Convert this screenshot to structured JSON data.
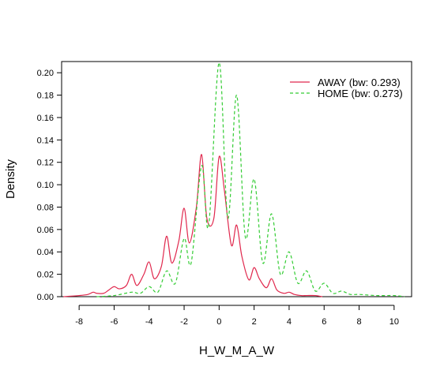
{
  "chart_data": {
    "type": "line",
    "title": "",
    "xlabel": "H_W_M_A_W",
    "ylabel": "Density",
    "xlim": [
      -9,
      11
    ],
    "ylim": [
      0,
      0.21
    ],
    "xticks": [
      -8,
      -6,
      -4,
      -2,
      0,
      2,
      4,
      6,
      8,
      10
    ],
    "yticks": [
      0.0,
      0.02,
      0.04,
      0.06,
      0.08,
      0.1,
      0.12,
      0.14,
      0.16,
      0.18,
      0.2
    ],
    "xtick_labels": [
      "-8",
      "-6",
      "-4",
      "-2",
      "0",
      "2",
      "4",
      "6",
      "8",
      "10"
    ],
    "ytick_labels": [
      "0.00",
      "0.02",
      "0.04",
      "0.06",
      "0.08",
      "0.10",
      "0.12",
      "0.14",
      "0.16",
      "0.18",
      "0.20"
    ],
    "grid": false,
    "legend_position": "top-right",
    "series": [
      {
        "name": "AWAY (bw: 0.293)",
        "color": "#e0284d",
        "dash": "solid",
        "x": [
          -8.9,
          -8,
          -7.5,
          -7.2,
          -7,
          -6.6,
          -6.3,
          -6,
          -5.7,
          -5.3,
          -5,
          -4.7,
          -4.3,
          -4,
          -3.7,
          -3.3,
          -3,
          -2.7,
          -2.3,
          -2,
          -1.7,
          -1.3,
          -1,
          -0.7,
          -0.3,
          0,
          0.3,
          0.7,
          1,
          1.3,
          1.7,
          2,
          2.3,
          2.7,
          3,
          3.3,
          3.7,
          4,
          4.3,
          4.7,
          5,
          5.5,
          5.9
        ],
        "y": [
          0.0,
          0.001,
          0.002,
          0.004,
          0.003,
          0.003,
          0.006,
          0.009,
          0.007,
          0.01,
          0.02,
          0.01,
          0.02,
          0.031,
          0.016,
          0.027,
          0.054,
          0.03,
          0.05,
          0.079,
          0.048,
          0.08,
          0.127,
          0.07,
          0.07,
          0.125,
          0.095,
          0.046,
          0.064,
          0.036,
          0.015,
          0.026,
          0.016,
          0.008,
          0.016,
          0.006,
          0.003,
          0.004,
          0.002,
          0.001,
          0.001,
          0.001,
          0.0
        ]
      },
      {
        "name": "HOME (bw: 0.273)",
        "color": "#33cc33",
        "dash": "dashed",
        "x": [
          -7,
          -6,
          -5,
          -4.5,
          -4,
          -3.5,
          -3,
          -2.5,
          -2,
          -1.6,
          -1,
          -0.6,
          0,
          0.5,
          1,
          1.5,
          2,
          2.5,
          3,
          3.5,
          4,
          4.5,
          5,
          5.5,
          6,
          6.5,
          7,
          7.5,
          8,
          9,
          10,
          10.6
        ],
        "y": [
          0.0,
          0.001,
          0.004,
          0.003,
          0.009,
          0.004,
          0.023,
          0.012,
          0.052,
          0.03,
          0.117,
          0.063,
          0.209,
          0.07,
          0.18,
          0.053,
          0.105,
          0.03,
          0.074,
          0.02,
          0.04,
          0.012,
          0.023,
          0.005,
          0.012,
          0.003,
          0.005,
          0.002,
          0.002,
          0.001,
          0.001,
          0.0
        ]
      }
    ]
  }
}
